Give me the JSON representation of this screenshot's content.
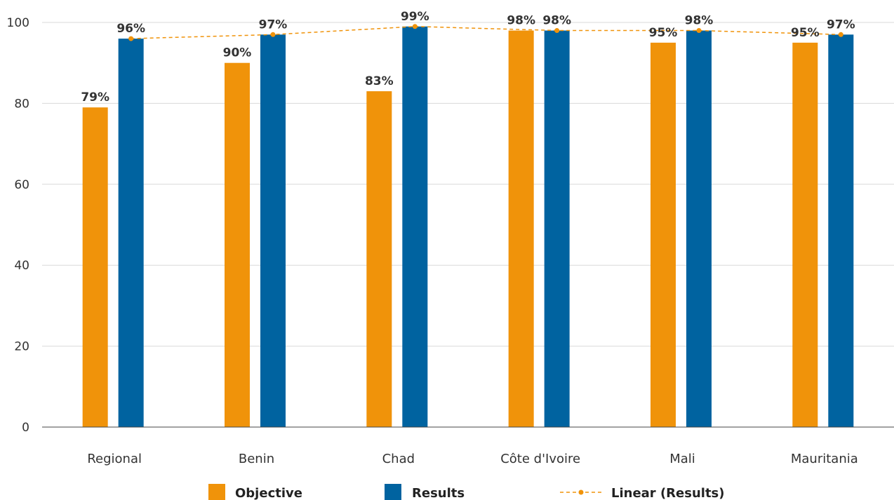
{
  "chart_data": {
    "type": "bar",
    "categories": [
      "Regional",
      "Benin",
      "Chad",
      "Côte d'Ivoire",
      "Mali",
      "Mauritania"
    ],
    "series": [
      {
        "name": "Objective",
        "values": [
          79,
          90,
          83,
          98,
          95,
          95
        ],
        "color": "#F0930A",
        "labels": [
          "79%",
          "90%",
          "83%",
          "98%",
          "95%",
          "95%"
        ]
      },
      {
        "name": "Results",
        "values": [
          96,
          97,
          99,
          98,
          98,
          97
        ],
        "color": "#0063A0",
        "labels": [
          "96%",
          "97%",
          "99%",
          "98%",
          "98%",
          "97%"
        ]
      }
    ],
    "trendline": {
      "name": "Linear (Results)",
      "of_series": "Results",
      "values": [
        96,
        97,
        99,
        98,
        98,
        97
      ],
      "color": "#F0930A",
      "style": "dashed"
    },
    "yticks": [
      "0",
      "20",
      "40",
      "60",
      "80",
      "100"
    ],
    "ylim": [
      0,
      100
    ],
    "grid": true,
    "legend_position": "bottom"
  }
}
